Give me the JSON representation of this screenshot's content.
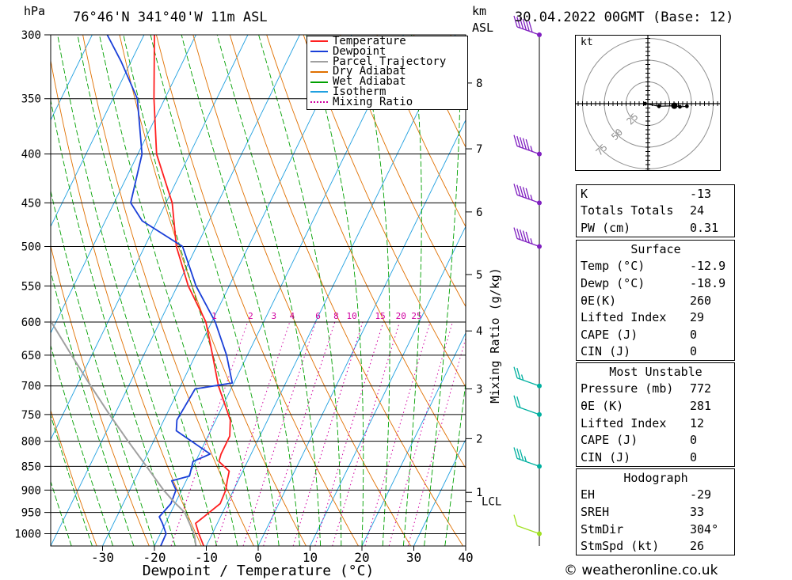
{
  "header": {
    "hpa_label": "hPa",
    "location": "76°46'N  341°40'W  11m  ASL",
    "km_label": "km",
    "asl_label": "ASL",
    "datetime": "30.04.2022  00GMT  (Base: 12)"
  },
  "colors": {
    "temperature": "#ff2020",
    "dewpoint": "#1a3fd8",
    "parcel": "#a0a0a0",
    "dry_adiabat": "#e07000",
    "wet_adiabat": "#00a000",
    "isotherm": "#20a0e0",
    "mixing_ratio": "#d000a0",
    "wind": "#8020c0"
  },
  "legend": [
    {
      "label": "Temperature",
      "key": "temperature",
      "style": "solid"
    },
    {
      "label": "Dewpoint",
      "key": "dewpoint",
      "style": "solid"
    },
    {
      "label": "Parcel Trajectory",
      "key": "parcel",
      "style": "solid"
    },
    {
      "label": "Dry Adiabat",
      "key": "dry_adiabat",
      "style": "solid"
    },
    {
      "label": "Wet Adiabat",
      "key": "wet_adiabat",
      "style": "solid"
    },
    {
      "label": "Isotherm",
      "key": "isotherm",
      "style": "solid"
    },
    {
      "label": "Mixing Ratio",
      "key": "mixing_ratio",
      "style": "dotted"
    }
  ],
  "chart_data": {
    "type": "line",
    "xlabel": "Dewpoint / Temperature (°C)",
    "y2label": "Mixing Ratio (g/kg)",
    "x_ticks": [
      -30,
      -20,
      -10,
      0,
      10,
      20,
      30,
      40
    ],
    "xlim": [
      -40,
      40
    ],
    "pressure_levels": [
      300,
      350,
      400,
      450,
      500,
      550,
      600,
      650,
      700,
      750,
      800,
      850,
      900,
      950,
      1000
    ],
    "ylim": [
      1030,
      300
    ],
    "skew_deg_per_decade": 30,
    "km_ticks": [
      {
        "km": 1,
        "p": 905
      },
      {
        "km": 2,
        "p": 795
      },
      {
        "km": 3,
        "p": 705
      },
      {
        "km": 4,
        "p": 613
      },
      {
        "km": 5,
        "p": 535
      },
      {
        "km": 6,
        "p": 460
      },
      {
        "km": 7,
        "p": 395
      },
      {
        "km": 8,
        "p": 337
      }
    ],
    "lcl": {
      "label": "LCL",
      "p": 925
    },
    "mixing_ratio_labels": [
      {
        "label": "1",
        "t": -29.5
      },
      {
        "label": "2",
        "t": -22.5
      },
      {
        "label": "3",
        "t": -18
      },
      {
        "label": "4",
        "t": -14.5
      },
      {
        "label": "6",
        "t": -9.5
      },
      {
        "label": "8",
        "t": -6
      },
      {
        "label": "10",
        "t": -3
      },
      {
        "label": "15",
        "t": 2.5
      },
      {
        "label": "20",
        "t": 6.5
      },
      {
        "label": "25",
        "t": 9.5
      }
    ],
    "series": [
      {
        "name": "Temperature",
        "key": "temperature",
        "points": [
          [
            1030,
            -10.5
          ],
          [
            1000,
            -12.6
          ],
          [
            975,
            -14.2
          ],
          [
            960,
            -13.2
          ],
          [
            930,
            -11.3
          ],
          [
            900,
            -11.5
          ],
          [
            880,
            -12.1
          ],
          [
            860,
            -12.6
          ],
          [
            840,
            -15.5
          ],
          [
            825,
            -15.8
          ],
          [
            790,
            -15.8
          ],
          [
            760,
            -17.2
          ],
          [
            700,
            -22.7
          ],
          [
            650,
            -26.7
          ],
          [
            600,
            -31.1
          ],
          [
            550,
            -37.9
          ],
          [
            500,
            -43.9
          ],
          [
            450,
            -48.8
          ],
          [
            400,
            -56.4
          ],
          [
            350,
            -62.1
          ],
          [
            300,
            -68.0
          ]
        ]
      },
      {
        "name": "Dewpoint",
        "key": "dewpoint",
        "points": [
          [
            1030,
            -18.8
          ],
          [
            1000,
            -18.9
          ],
          [
            975,
            -20.6
          ],
          [
            960,
            -21.8
          ],
          [
            930,
            -20.8
          ],
          [
            900,
            -21.1
          ],
          [
            880,
            -22.8
          ],
          [
            870,
            -19.8
          ],
          [
            840,
            -20.5
          ],
          [
            825,
            -17.9
          ],
          [
            780,
            -26.6
          ],
          [
            760,
            -27.5
          ],
          [
            705,
            -26.9
          ],
          [
            695,
            -20.3
          ],
          [
            650,
            -24.0
          ],
          [
            600,
            -29.3
          ],
          [
            550,
            -36.4
          ],
          [
            500,
            -42.7
          ],
          [
            470,
            -52.9
          ],
          [
            450,
            -56.8
          ],
          [
            400,
            -59.2
          ],
          [
            350,
            -65.3
          ],
          [
            320,
            -71.9
          ],
          [
            300,
            -77.1
          ]
        ]
      },
      {
        "name": "Parcel Trajectory",
        "key": "parcel",
        "points": [
          [
            1030,
            -12.0
          ],
          [
            1000,
            -13.5
          ],
          [
            950,
            -17.3
          ],
          [
            925,
            -20.5
          ],
          [
            900,
            -23.5
          ],
          [
            850,
            -29.0
          ],
          [
            800,
            -34.9
          ],
          [
            750,
            -41.0
          ],
          [
            700,
            -47.3
          ],
          [
            650,
            -53.9
          ],
          [
            600,
            -60.9
          ],
          [
            550,
            -68.3
          ],
          [
            500,
            -76.0
          ],
          [
            470,
            -81.0
          ]
        ]
      }
    ],
    "wind_barbs": [
      {
        "p": 300,
        "dir": 304,
        "speed": 60
      },
      {
        "p": 400,
        "dir": 304,
        "speed": 55
      },
      {
        "p": 450,
        "dir": 304,
        "speed": 55
      },
      {
        "p": 500,
        "dir": 304,
        "speed": 55
      },
      {
        "p": 700,
        "dir": 330,
        "speed": 25
      },
      {
        "p": 750,
        "dir": 330,
        "speed": 20
      },
      {
        "p": 850,
        "dir": 320,
        "speed": 35
      },
      {
        "p": 1000,
        "dir": 250,
        "speed": 10
      }
    ],
    "hodograph": {
      "unit_label": "kt",
      "ring_labels": [
        "25",
        "50",
        "75"
      ],
      "rings_kt": [
        25,
        50,
        75
      ],
      "points_uv": [
        [
          -2,
          0
        ],
        [
          8,
          -5
        ],
        [
          19,
          -4
        ],
        [
          23,
          -6
        ],
        [
          28,
          -5
        ]
      ]
    }
  },
  "indices": {
    "k": {
      "label": "K",
      "value": "-13"
    },
    "tt": {
      "label": "Totals Totals",
      "value": "24"
    },
    "pw": {
      "label": "PW (cm)",
      "value": "0.31"
    }
  },
  "surface": {
    "title": "Surface",
    "rows": [
      {
        "label": "Temp (°C)",
        "value": "-12.9"
      },
      {
        "label": "Dewp (°C)",
        "value": "-18.9"
      },
      {
        "label": "θE(K)",
        "value": "260"
      },
      {
        "label": "Lifted Index",
        "value": "29"
      },
      {
        "label": "CAPE (J)",
        "value": "0"
      },
      {
        "label": "CIN (J)",
        "value": "0"
      }
    ]
  },
  "most_unstable": {
    "title": "Most Unstable",
    "rows": [
      {
        "label": "Pressure (mb)",
        "value": "772"
      },
      {
        "label": "θE (K)",
        "value": "281"
      },
      {
        "label": "Lifted Index",
        "value": "12"
      },
      {
        "label": "CAPE (J)",
        "value": "0"
      },
      {
        "label": "CIN (J)",
        "value": "0"
      }
    ]
  },
  "hodograph_table": {
    "title": "Hodograph",
    "rows": [
      {
        "label": "EH",
        "value": "-29"
      },
      {
        "label": "SREH",
        "value": "33"
      },
      {
        "label": "StmDir",
        "value": "304°"
      },
      {
        "label": "StmSpd (kt)",
        "value": "26"
      }
    ]
  },
  "credit": "© weatheronline.co.uk"
}
